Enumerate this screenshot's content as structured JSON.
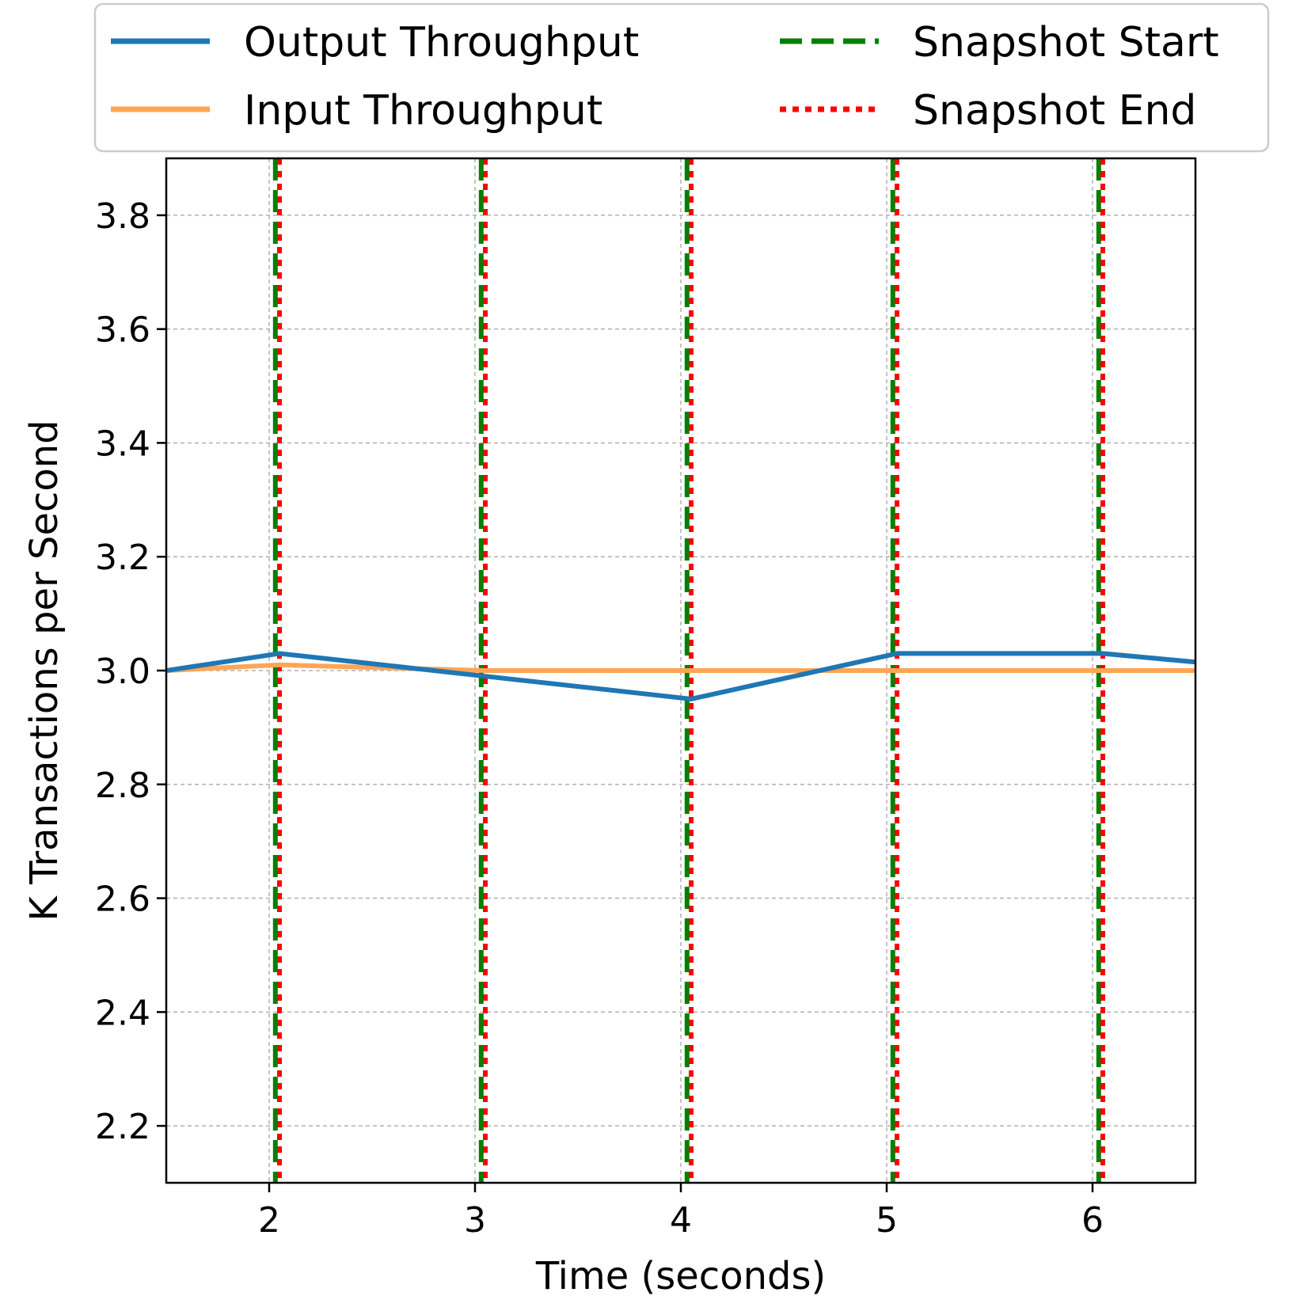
{
  "chart_data": {
    "type": "line",
    "title": "",
    "xlabel": "Time (seconds)",
    "ylabel": "K Transactions per Second",
    "xlim": [
      1.5,
      6.5
    ],
    "ylim": [
      2.1,
      3.9
    ],
    "xticks": [
      2,
      3,
      4,
      5,
      6
    ],
    "yticks": [
      2.2,
      2.4,
      2.6,
      2.8,
      3.0,
      3.2,
      3.4,
      3.6,
      3.8
    ],
    "grid": true,
    "legend_position": "top-center-outside",
    "series": [
      {
        "name": "Output Throughput",
        "color": "#1f77b4",
        "style": "solid",
        "x": [
          1.5,
          2.05,
          3.05,
          4.05,
          5.05,
          6.05,
          6.5
        ],
        "y": [
          3.0,
          3.03,
          2.99,
          2.95,
          3.03,
          3.03,
          3.015
        ]
      },
      {
        "name": "Input Throughput",
        "color": "#ffa556",
        "style": "solid",
        "x": [
          1.5,
          2.05,
          3.05,
          4.05,
          5.05,
          6.05,
          6.5
        ],
        "y": [
          3.0,
          3.01,
          3.0,
          3.0,
          3.0,
          3.0,
          3.0
        ]
      }
    ],
    "vlines": [
      {
        "name": "Snapshot Start",
        "color": "#008000",
        "style": "dashed",
        "x": [
          2.03,
          3.03,
          4.03,
          5.03,
          6.03
        ]
      },
      {
        "name": "Snapshot End",
        "color": "#ff0000",
        "style": "dotted",
        "x": [
          2.05,
          3.05,
          4.05,
          5.05,
          6.05
        ]
      }
    ]
  }
}
